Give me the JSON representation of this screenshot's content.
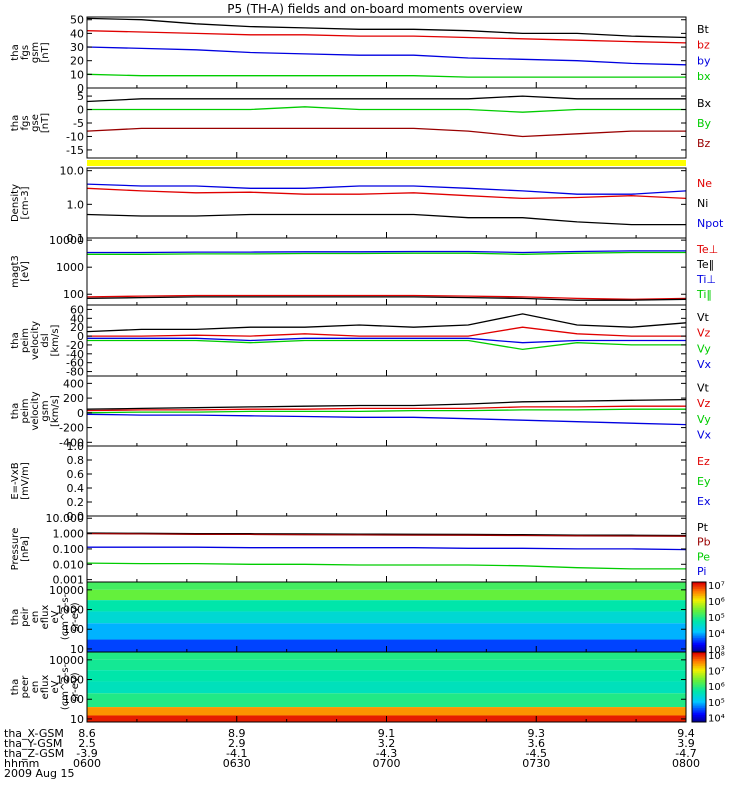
{
  "title": "P5 (TH-A) fields and on-board moments overview",
  "date_label": "2009 Aug 15",
  "colors": {
    "black": "#000000",
    "red": "#e00000",
    "green": "#00cc00",
    "blue": "#0000e0",
    "darkred": "#990000",
    "yellow": "#ffff00"
  },
  "time_axis": {
    "row_labels": [
      "tha_X-GSM",
      "tha_Y-GSM",
      "tha_Z-GSM",
      "hhmm"
    ],
    "columns": [
      {
        "x": "8.6",
        "y": "2.5",
        "z": "-3.9",
        "hhmm": "0600"
      },
      {
        "x": "8.9",
        "y": "2.9",
        "z": "-4.1",
        "hhmm": "0630"
      },
      {
        "x": "9.1",
        "y": "3.2",
        "z": "-4.3",
        "hhmm": "0700"
      },
      {
        "x": "9.3",
        "y": "3.6",
        "z": "-4.5",
        "hhmm": "0730"
      },
      {
        "x": "9.4",
        "y": "3.9",
        "z": "-4.7",
        "hhmm": "0800"
      }
    ]
  },
  "chart_data": [
    {
      "type": "line",
      "ylabel_lines": [
        "tha",
        "fgs",
        "gsm",
        "[nT]"
      ],
      "ylim": [
        0,
        52
      ],
      "yticks": [
        "50",
        "40",
        "30",
        "20",
        "10",
        "0"
      ],
      "ytick_values": [
        50,
        40,
        30,
        20,
        10,
        0
      ],
      "series": [
        {
          "name": "Bt",
          "color": "black",
          "values": [
            51,
            50,
            47,
            45,
            44,
            43,
            43,
            42,
            40,
            40,
            38,
            37
          ]
        },
        {
          "name": "bz",
          "color": "red",
          "values": [
            42,
            41,
            40,
            39,
            39,
            38,
            38,
            37,
            36,
            35,
            34,
            33
          ]
        },
        {
          "name": "by",
          "color": "blue",
          "values": [
            30,
            29,
            28,
            26,
            25,
            24,
            24,
            22,
            21,
            20,
            18,
            17
          ]
        },
        {
          "name": "bx",
          "color": "green",
          "values": [
            10,
            9,
            9,
            9,
            9,
            9,
            9,
            8,
            8,
            8,
            8,
            8
          ]
        }
      ]
    },
    {
      "type": "line",
      "ylabel_lines": [
        "tha",
        "fgs",
        "gse",
        "[nT]"
      ],
      "ylim": [
        -18,
        8
      ],
      "yticks": [
        "5",
        "0",
        "-5",
        "-10",
        "-15"
      ],
      "ytick_values": [
        5,
        0,
        -5,
        -10,
        -15
      ],
      "series": [
        {
          "name": "Bx",
          "color": "black",
          "values": [
            3,
            4,
            4,
            4,
            4,
            4,
            4,
            4,
            5,
            4,
            4,
            4
          ]
        },
        {
          "name": "By",
          "color": "green",
          "values": [
            0,
            0,
            0,
            0,
            1,
            0,
            0,
            0,
            -1,
            0,
            0,
            0
          ]
        },
        {
          "name": "Bz",
          "color": "darkred",
          "values": [
            -8,
            -7,
            -7,
            -7,
            -7,
            -7,
            -7,
            -8,
            -10,
            -9,
            -8,
            -8
          ]
        }
      ]
    },
    {
      "type": "flag",
      "series": [
        {
          "name": "",
          "color": "yellow",
          "values": [
            1
          ]
        }
      ]
    },
    {
      "type": "line",
      "scale": "log",
      "ylabel_lines": [
        "Density",
        "[cm-3]"
      ],
      "ylim": [
        0.1,
        12
      ],
      "yticks": [
        "10.0",
        "1.0",
        "0.1"
      ],
      "ytick_values": [
        10,
        1,
        0.1
      ],
      "series": [
        {
          "name": "Ne",
          "color": "red",
          "values": [
            3,
            2.5,
            2.2,
            2.3,
            2,
            2,
            2.2,
            1.8,
            1.5,
            1.6,
            1.8,
            1.5
          ]
        },
        {
          "name": "Ni",
          "color": "black",
          "values": [
            0.5,
            0.45,
            0.45,
            0.5,
            0.5,
            0.5,
            0.5,
            0.4,
            0.4,
            0.3,
            0.25,
            0.25
          ]
        },
        {
          "name": "Npot",
          "color": "blue",
          "values": [
            4,
            3.5,
            3.5,
            3,
            3,
            3.5,
            3.5,
            3,
            2.5,
            2,
            2,
            2.5
          ]
        }
      ]
    },
    {
      "type": "line",
      "scale": "log",
      "ylabel_lines": [
        "magt3",
        "[eV]"
      ],
      "ylim": [
        40,
        12000
      ],
      "yticks": [
        "10000",
        "1000",
        "100"
      ],
      "ytick_values": [
        10000,
        1000,
        100
      ],
      "series": [
        {
          "name": "Te⊥",
          "color": "red",
          "values": [
            80,
            85,
            90,
            90,
            90,
            90,
            90,
            85,
            80,
            70,
            65,
            70
          ]
        },
        {
          "name": "Te‖",
          "color": "black",
          "values": [
            70,
            75,
            80,
            80,
            80,
            80,
            80,
            75,
            70,
            60,
            60,
            65
          ]
        },
        {
          "name": "Ti⊥",
          "color": "blue",
          "values": [
            3500,
            3500,
            3600,
            3600,
            3700,
            3700,
            3800,
            3800,
            3500,
            3800,
            4000,
            4000
          ]
        },
        {
          "name": "Ti‖",
          "color": "green",
          "values": [
            3000,
            3000,
            3100,
            3100,
            3200,
            3200,
            3300,
            3300,
            3000,
            3300,
            3500,
            3500
          ]
        }
      ]
    },
    {
      "type": "line",
      "ylabel_lines": [
        "tha",
        "peim",
        "velocity",
        "dsl",
        "[km/s]"
      ],
      "ylim": [
        -90,
        70
      ],
      "yticks": [
        "60",
        "40",
        "20",
        "0",
        "-20",
        "-40",
        "-60",
        "-80"
      ],
      "ytick_values": [
        60,
        40,
        20,
        0,
        -20,
        -40,
        -60,
        -80
      ],
      "series": [
        {
          "name": "Vt",
          "color": "black",
          "values": [
            10,
            15,
            15,
            20,
            20,
            25,
            20,
            25,
            50,
            25,
            20,
            30
          ]
        },
        {
          "name": "Vz",
          "color": "red",
          "values": [
            0,
            0,
            2,
            0,
            5,
            0,
            0,
            0,
            20,
            5,
            0,
            0
          ]
        },
        {
          "name": "Vy",
          "color": "green",
          "values": [
            -10,
            -10,
            -10,
            -15,
            -10,
            -10,
            -10,
            -10,
            -30,
            -15,
            -20,
            -20
          ]
        },
        {
          "name": "Vx",
          "color": "blue",
          "values": [
            -5,
            -5,
            -5,
            -10,
            -5,
            -5,
            -5,
            -5,
            -15,
            -10,
            -10,
            -10
          ]
        }
      ]
    },
    {
      "type": "line",
      "ylabel_lines": [
        "tha",
        "peim",
        "velocity",
        "gsm",
        "[km/s]"
      ],
      "ylim": [
        -450,
        500
      ],
      "yticks": [
        "400",
        "200",
        "0",
        "-200",
        "-400"
      ],
      "ytick_values": [
        400,
        200,
        0,
        -200,
        -400
      ],
      "series": [
        {
          "name": "Vt",
          "color": "black",
          "values": [
            50,
            60,
            70,
            80,
            90,
            100,
            100,
            120,
            150,
            160,
            170,
            180
          ]
        },
        {
          "name": "Vz",
          "color": "red",
          "values": [
            30,
            40,
            40,
            50,
            50,
            60,
            60,
            60,
            80,
            80,
            90,
            90
          ]
        },
        {
          "name": "Vy",
          "color": "green",
          "values": [
            0,
            10,
            10,
            20,
            20,
            20,
            30,
            30,
            40,
            40,
            50,
            50
          ]
        },
        {
          "name": "Vx",
          "color": "blue",
          "values": [
            -20,
            -30,
            -30,
            -40,
            -50,
            -60,
            -60,
            -80,
            -100,
            -120,
            -140,
            -160
          ]
        }
      ]
    },
    {
      "type": "line",
      "ylabel_lines": [
        "E=-VxB",
        "[mV/m]"
      ],
      "ylim": [
        0,
        1
      ],
      "yticks": [
        "1.0",
        "0.8",
        "0.6",
        "0.4",
        "0.2",
        "0.0"
      ],
      "ytick_values": [
        1,
        0.8,
        0.6,
        0.4,
        0.2,
        0
      ],
      "series": [
        {
          "name": "Ez",
          "color": "red",
          "values": []
        },
        {
          "name": "Ey",
          "color": "green",
          "values": []
        },
        {
          "name": "Ex",
          "color": "blue",
          "values": []
        }
      ]
    },
    {
      "type": "line",
      "scale": "log",
      "ylabel_lines": [
        "Pressure",
        "[nPa]"
      ],
      "ylim": [
        0.0007,
        14
      ],
      "yticks": [
        "10.000",
        "1.000",
        "0.100",
        "0.010",
        "0.001"
      ],
      "ytick_values": [
        10,
        1,
        0.1,
        0.01,
        0.001
      ],
      "series": [
        {
          "name": "Pt",
          "color": "black",
          "values": [
            1.1,
            1.05,
            1.0,
            0.98,
            0.95,
            0.92,
            0.9,
            0.88,
            0.85,
            0.8,
            0.78,
            0.75
          ]
        },
        {
          "name": "Pb",
          "color": "darkred",
          "values": [
            1.0,
            0.95,
            0.9,
            0.88,
            0.85,
            0.82,
            0.8,
            0.78,
            0.75,
            0.72,
            0.7,
            0.68
          ]
        },
        {
          "name": "Pe",
          "color": "green",
          "values": [
            0.012,
            0.011,
            0.011,
            0.01,
            0.01,
            0.009,
            0.009,
            0.009,
            0.008,
            0.006,
            0.005,
            0.005
          ]
        },
        {
          "name": "Pi",
          "color": "blue",
          "values": [
            0.13,
            0.13,
            0.13,
            0.12,
            0.12,
            0.12,
            0.12,
            0.11,
            0.11,
            0.1,
            0.1,
            0.09
          ]
        }
      ]
    },
    {
      "type": "heatmap",
      "scale": "log",
      "ylabel_lines": [
        "tha",
        "peir",
        "en",
        "eflux",
        "eV",
        "(cm^2-s-",
        "sr-eV)"
      ],
      "ylim": [
        7,
        25000
      ],
      "yticks": [
        "10000",
        "1000",
        "100",
        "10"
      ],
      "ytick_values": [
        10000,
        1000,
        100,
        10
      ],
      "colorbar": {
        "labels": [
          "10⁷",
          "10⁶",
          "10⁵",
          "10⁴",
          "10³"
        ],
        "range_exp": [
          2.8,
          7.2
        ]
      },
      "bands": [
        {
          "y_low": 10000,
          "y_high": 25000,
          "level": 0.55
        },
        {
          "y_low": 3000,
          "y_high": 10000,
          "level": 0.6
        },
        {
          "y_low": 800,
          "y_high": 3000,
          "level": 0.45
        },
        {
          "y_low": 200,
          "y_high": 800,
          "level": 0.38
        },
        {
          "y_low": 30,
          "y_high": 200,
          "level": 0.28
        },
        {
          "y_low": 7,
          "y_high": 30,
          "level": 0.18
        }
      ]
    },
    {
      "type": "heatmap",
      "scale": "log",
      "ylabel_lines": [
        "tha",
        "peer",
        "en",
        "eflux",
        "eV",
        "(cm^2-s-",
        "sr-eV)"
      ],
      "ylim": [
        7,
        25000
      ],
      "yticks": [
        "10000",
        "1000",
        "100",
        "10"
      ],
      "ytick_values": [
        10000,
        1000,
        100,
        10
      ],
      "colorbar": {
        "labels": [
          "10⁸",
          "10⁷",
          "10⁶",
          "10⁵",
          "10⁴"
        ],
        "range_exp": [
          3.7,
          8.2
        ]
      },
      "bands": [
        {
          "y_low": 10000,
          "y_high": 25000,
          "level": 0.5
        },
        {
          "y_low": 3000,
          "y_high": 10000,
          "level": 0.48
        },
        {
          "y_low": 800,
          "y_high": 3000,
          "level": 0.45
        },
        {
          "y_low": 200,
          "y_high": 800,
          "level": 0.42
        },
        {
          "y_low": 40,
          "y_high": 200,
          "level": 0.5
        },
        {
          "y_low": 15,
          "y_high": 40,
          "level": 0.85
        },
        {
          "y_low": 7,
          "y_high": 15,
          "level": 0.97
        }
      ]
    }
  ]
}
